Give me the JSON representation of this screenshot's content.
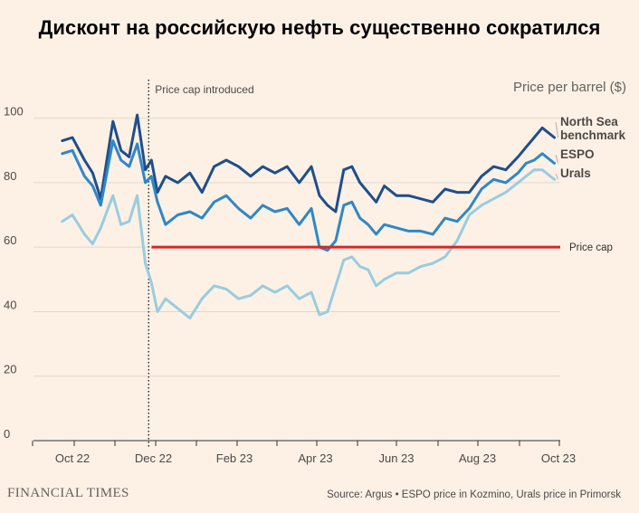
{
  "title": "Дисконт на российскую нефть существенно сократился",
  "source": "Source: Argus • ESPO price in Kozmino, Urals price in Primorsk",
  "publisher": "FINANCIAL TIMES",
  "colors": {
    "background": "#fdf1e6",
    "north_sea": "#1f4e8c",
    "espo": "#2f87c8",
    "urals": "#99cce0",
    "price_cap": "#d62828",
    "grid": "#e3d6c9"
  },
  "chart_data": {
    "type": "line",
    "title": "Дисконт на российскую нефть существенно сократился",
    "ylabel": "Price per barrel ($)",
    "xlabel": "",
    "ylim": [
      0,
      110
    ],
    "yticks": [
      0,
      20,
      40,
      60,
      80,
      100
    ],
    "x_tick_labels": [
      "Oct 22",
      "Dec 22",
      "Feb 23",
      "Apr 23",
      "Jun 23",
      "Aug 23",
      "Oct 23"
    ],
    "x_tick_month_index": [
      0,
      2,
      4,
      6,
      8,
      10,
      12
    ],
    "x_range_months": [
      -0.25,
      12.1
    ],
    "annotations": [
      {
        "label": "Price cap introduced",
        "month_index": 1.95,
        "style": "dotted-vertical"
      }
    ],
    "reference_lines": [
      {
        "label": "Price cap",
        "value": 60,
        "from_month": 2.0
      }
    ],
    "series": [
      {
        "name": "North Sea benchmark",
        "label_lines": [
          "North Sea",
          "benchmark"
        ],
        "x": [
          -0.25,
          0,
          0.3,
          0.5,
          0.7,
          1.0,
          1.2,
          1.4,
          1.6,
          1.8,
          1.95,
          2.1,
          2.3,
          2.6,
          2.9,
          3.2,
          3.5,
          3.8,
          4.1,
          4.4,
          4.7,
          5.0,
          5.3,
          5.6,
          5.9,
          6.1,
          6.3,
          6.5,
          6.7,
          6.9,
          7.1,
          7.3,
          7.5,
          7.7,
          8.0,
          8.3,
          8.6,
          8.9,
          9.2,
          9.5,
          9.8,
          10.1,
          10.4,
          10.7,
          11.0,
          11.2,
          11.4,
          11.6,
          11.9
        ],
        "values": [
          93,
          94,
          87,
          83,
          75,
          99,
          90,
          88,
          101,
          84,
          87,
          77,
          82,
          80,
          83,
          77,
          85,
          87,
          85,
          82,
          85,
          83,
          85,
          80,
          85,
          76,
          73,
          71,
          84,
          85,
          80,
          77,
          74,
          79,
          76,
          76,
          75,
          74,
          78,
          77,
          77,
          82,
          85,
          84,
          88,
          91,
          94,
          97,
          94
        ]
      },
      {
        "name": "ESPO",
        "label_lines": [
          "ESPO"
        ],
        "x": [
          -0.25,
          0,
          0.3,
          0.5,
          0.7,
          1.0,
          1.2,
          1.4,
          1.6,
          1.8,
          1.95,
          2.1,
          2.3,
          2.6,
          2.9,
          3.2,
          3.5,
          3.8,
          4.1,
          4.4,
          4.7,
          5.0,
          5.3,
          5.6,
          5.9,
          6.1,
          6.3,
          6.5,
          6.7,
          6.9,
          7.1,
          7.3,
          7.5,
          7.7,
          8.0,
          8.3,
          8.6,
          8.9,
          9.2,
          9.5,
          9.8,
          10.1,
          10.4,
          10.7,
          11.0,
          11.2,
          11.4,
          11.6,
          11.9
        ],
        "values": [
          89,
          90,
          82,
          79,
          73,
          93,
          87,
          85,
          92,
          80,
          82,
          74,
          67,
          70,
          71,
          69,
          74,
          76,
          72,
          69,
          73,
          71,
          72,
          67,
          72,
          60,
          59,
          62,
          73,
          74,
          69,
          67,
          64,
          67,
          66,
          65,
          65,
          64,
          69,
          68,
          72,
          78,
          81,
          80,
          83,
          86,
          87,
          89,
          86
        ]
      },
      {
        "name": "Urals",
        "label_lines": [
          "Urals"
        ],
        "x": [
          -0.25,
          0,
          0.3,
          0.5,
          0.7,
          1.0,
          1.2,
          1.4,
          1.6,
          1.8,
          1.95,
          2.1,
          2.3,
          2.6,
          2.9,
          3.2,
          3.5,
          3.8,
          4.1,
          4.4,
          4.7,
          5.0,
          5.3,
          5.6,
          5.9,
          6.1,
          6.3,
          6.5,
          6.7,
          6.9,
          7.1,
          7.3,
          7.5,
          7.7,
          8.0,
          8.3,
          8.6,
          8.9,
          9.2,
          9.5,
          9.8,
          10.1,
          10.4,
          10.7,
          11.0,
          11.2,
          11.4,
          11.6,
          11.9
        ],
        "values": [
          68,
          70,
          64,
          61,
          66,
          76,
          67,
          68,
          76,
          55,
          49,
          40,
          44,
          41,
          38,
          44,
          48,
          47,
          44,
          45,
          48,
          46,
          48,
          44,
          46,
          39,
          40,
          48,
          56,
          57,
          54,
          53,
          48,
          50,
          52,
          52,
          54,
          55,
          57,
          62,
          70,
          73,
          75,
          77,
          80,
          82,
          84,
          84,
          81
        ]
      }
    ]
  }
}
